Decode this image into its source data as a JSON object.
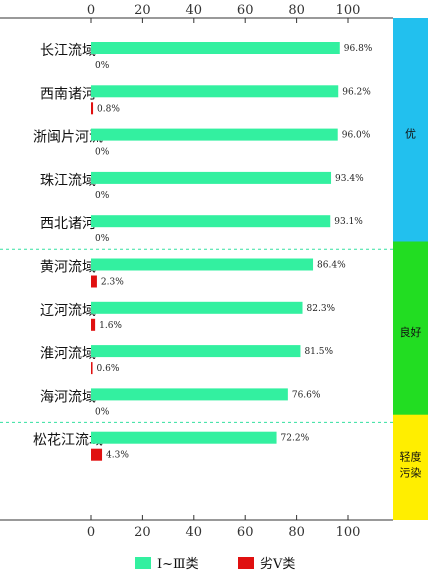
{
  "chart_data": {
    "type": "bar",
    "orientation": "horizontal",
    "xlim": [
      0,
      100
    ],
    "xticks": [
      "0",
      "20",
      "40",
      "60",
      "80",
      "100"
    ],
    "categories": [
      "长江流域",
      "西南诸河",
      "浙闽片河流",
      "珠江流域",
      "西北诸河",
      "黄河流域",
      "辽河流域",
      "淮河流域",
      "海河流域",
      "松花江流域"
    ],
    "series": [
      {
        "name": "Ⅰ~Ⅲ类",
        "color": "#33f0a0",
        "values": [
          96.8,
          96.2,
          96.0,
          93.4,
          93.1,
          86.4,
          82.3,
          81.5,
          76.6,
          72.2
        ],
        "labels": [
          "96.8%",
          "96.2%",
          "96.0%",
          "93.4%",
          "93.1%",
          "86.4%",
          "82.3%",
          "81.5%",
          "76.6%",
          "72.2%"
        ]
      },
      {
        "name": "劣Ⅴ类",
        "color": "#e01010",
        "values": [
          0,
          0.8,
          0,
          0,
          0,
          2.3,
          1.6,
          0.6,
          0,
          4.3
        ],
        "labels": [
          "0%",
          "0.8%",
          "0%",
          "0%",
          "0%",
          "2.3%",
          "1.6%",
          "0.6%",
          "0%",
          "4.3%"
        ]
      }
    ],
    "groups": [
      {
        "label": "优",
        "color": "#22c0ee",
        "start": 0,
        "end": 4
      },
      {
        "label": "良好",
        "color": "#22dd22",
        "start": 5,
        "end": 8
      },
      {
        "label_lines": [
          "轻度",
          "污染"
        ],
        "color": "#ffee00",
        "start": 9,
        "end": 9
      }
    ],
    "legend_position": "bottom",
    "grid": false
  }
}
